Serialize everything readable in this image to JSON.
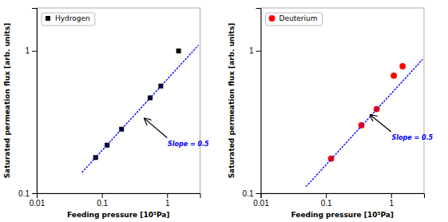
{
  "chart_data": [
    {
      "type": "scatter",
      "x_label": "Feeding pressure [10⁵Pa]",
      "y_label": "Saturated permeation flux  [arb. units]",
      "log": true,
      "xlim": [
        0.01,
        3.2
      ],
      "xticks": [
        0.01,
        0.1,
        1
      ],
      "ylim": [
        0.1,
        2.0
      ],
      "yticks": [
        0.1,
        1
      ],
      "legend": "upper left",
      "series": [
        {
          "name": "Hydrogen",
          "color": "#000000",
          "marker": "square",
          "x": [
            0.08,
            0.12,
            0.2,
            0.55,
            0.8,
            1.5
          ],
          "values": [
            0.178,
            0.218,
            0.282,
            0.468,
            0.566,
            1.0
          ]
        },
        {
          "type": "line",
          "color": "#0000ff",
          "line_style": "dotted",
          "x": [
            0.05,
            3.0
          ],
          "values": [
            0.14087228258,
            1.09119200877
          ]
        }
      ],
      "annotations": [
        {
          "text": "Slope = 0.5",
          "x": 1.02,
          "y": 0.235,
          "color": "#0000ff",
          "arrow_tail": [
            1.0,
            0.245
          ],
          "arrow_head": [
            0.45,
            0.335
          ]
        }
      ]
    },
    {
      "type": "scatter",
      "x_label": "Feeding pressure [10⁵Pa]",
      "y_label": "Saturated permeation flux  [arb. units]",
      "log": true,
      "xlim": [
        0.01,
        3.2
      ],
      "xticks": [
        0.01,
        0.1,
        1
      ],
      "ylim": [
        0.1,
        2.0
      ],
      "yticks": [
        0.1,
        1
      ],
      "legend": "upper left",
      "series": [
        {
          "name": "Deuterium",
          "color": "#ff0000",
          "marker": "circle",
          "x": [
            0.12,
            0.35,
            0.6,
            1.1,
            1.5
          ],
          "values": [
            0.175,
            0.3,
            0.39,
            0.67,
            0.78
          ]
        },
        {
          "type": "line",
          "color": "#0000ff",
          "line_style": "dotted",
          "x": [
            0.05,
            3.0
          ],
          "values": [
            0.11180339887,
            0.86602540378
          ]
        }
      ],
      "annotations": [
        {
          "text": "Slope = 0.5",
          "x": 1.02,
          "y": 0.26,
          "color": "#0000ff",
          "arrow_tail": [
            1.0,
            0.27
          ],
          "arrow_head": [
            0.48,
            0.355
          ]
        }
      ]
    }
  ]
}
